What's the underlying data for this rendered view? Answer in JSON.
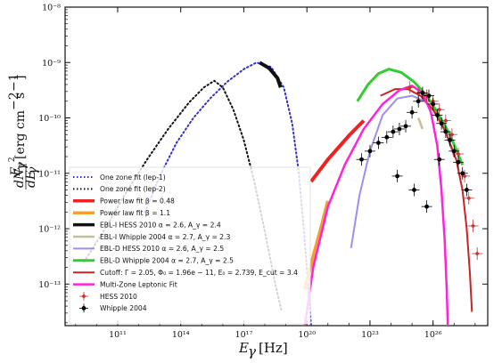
{
  "chart_data": {
    "type": "line",
    "xlabel": "E_γ [Hz]",
    "ylabel": "E_γ² dN_γ/dE_γ [erg cm⁻² s⁻¹]",
    "xscale": "log",
    "yscale": "log",
    "xlim_exp": [
      8.5,
      28.6
    ],
    "ylim_exp": [
      -13.75,
      -8
    ],
    "x_ticks": [
      {
        "exp": 11,
        "label": "10¹¹"
      },
      {
        "exp": 14,
        "label": "10¹⁴"
      },
      {
        "exp": 17,
        "label": "10¹⁷"
      },
      {
        "exp": 20,
        "label": "10²⁰"
      },
      {
        "exp": 23,
        "label": "10²³"
      },
      {
        "exp": 26,
        "label": "10²⁶"
      }
    ],
    "y_ticks": [
      {
        "exp": -8,
        "label": "10⁻⁸"
      },
      {
        "exp": -9,
        "label": "10⁻⁹"
      },
      {
        "exp": -10,
        "label": "10⁻¹⁰"
      },
      {
        "exp": -11,
        "label": "10⁻¹¹"
      },
      {
        "exp": -12,
        "label": "10⁻¹²"
      },
      {
        "exp": -13,
        "label": "10⁻¹³"
      }
    ],
    "grid": false,
    "legend_position": "lower-left",
    "series": [
      {
        "name": "One zone fit (lep-1)",
        "color": "#3333cc",
        "dash": "dotted",
        "width": 2,
        "points": [
          [
            12.3,
            -11.7
          ],
          [
            13.0,
            -11.05
          ],
          [
            13.8,
            -10.45
          ],
          [
            14.6,
            -10.0
          ],
          [
            15.4,
            -9.65
          ],
          [
            16.2,
            -9.35
          ],
          [
            17.0,
            -9.12
          ],
          [
            17.6,
            -9.0
          ],
          [
            18.3,
            -9.08
          ],
          [
            18.9,
            -9.45
          ],
          [
            19.3,
            -10.1
          ],
          [
            19.6,
            -10.95
          ],
          [
            19.85,
            -12.0
          ],
          [
            20.05,
            -13.0
          ],
          [
            20.2,
            -13.75
          ]
        ]
      },
      {
        "name": "One zone fit (lep-2)",
        "color": "#111111",
        "dash": "dotted",
        "width": 2,
        "points": [
          [
            9.4,
            -12.6
          ],
          [
            10.4,
            -12.0
          ],
          [
            11.4,
            -11.35
          ],
          [
            12.4,
            -10.75
          ],
          [
            13.4,
            -10.2
          ],
          [
            14.4,
            -9.72
          ],
          [
            15.1,
            -9.45
          ],
          [
            15.6,
            -9.33
          ],
          [
            16.0,
            -9.45
          ],
          [
            16.5,
            -9.85
          ],
          [
            17.0,
            -10.4
          ],
          [
            17.5,
            -11.15
          ],
          [
            18.0,
            -12.05
          ],
          [
            18.5,
            -13.0
          ],
          [
            18.8,
            -13.5
          ]
        ]
      },
      {
        "name": "Power law fit β = 0.48",
        "color": "#ee2222",
        "dash": "solid",
        "width": 4,
        "points": [
          [
            20.2,
            -11.15
          ],
          [
            21.0,
            -10.75
          ],
          [
            22.0,
            -10.32
          ],
          [
            22.7,
            -10.05
          ]
        ]
      },
      {
        "name": "Power law fit β = 1.1",
        "color": "#f0a030",
        "dash": "solid",
        "width": 4,
        "points": [
          [
            19.9,
            -13.1
          ],
          [
            20.3,
            -12.5
          ],
          [
            20.7,
            -11.95
          ],
          [
            21.0,
            -11.5
          ]
        ]
      },
      {
        "name": "EBL-I HESS 2010 α = 2.6, A_γ = 2.4",
        "color": "#111111",
        "dash": "solid",
        "width": 4,
        "points": [
          [
            17.75,
            -9.0
          ],
          [
            18.2,
            -9.1
          ],
          [
            18.6,
            -9.28
          ],
          [
            18.75,
            -9.45
          ]
        ]
      },
      {
        "name": "EBL-I Whipple 2004 α = 2.7, A_γ = 2.3",
        "color": "#c8c090",
        "dash": "solid",
        "width": 2.5,
        "points": [
          [
            25.3,
            -10.0
          ],
          [
            25.5,
            -10.2
          ]
        ]
      },
      {
        "name": "EBL-D HESS 2010 α = 2.6, A_γ = 2.5",
        "color": "#9d8ff0",
        "dash": "solid",
        "width": 2,
        "points": [
          [
            22.1,
            -12.35
          ],
          [
            22.5,
            -11.4
          ],
          [
            23.0,
            -10.6
          ],
          [
            23.6,
            -9.95
          ],
          [
            24.3,
            -9.65
          ],
          [
            25.0,
            -9.6
          ],
          [
            25.6,
            -9.7
          ],
          [
            26.1,
            -9.9
          ],
          [
            26.6,
            -10.25
          ],
          [
            27.0,
            -10.7
          ]
        ]
      },
      {
        "name": "EBL-D Whipple 2004 α = 2.7, A_γ = 2.5",
        "color": "#33cc33",
        "dash": "solid",
        "width": 3,
        "points": [
          [
            22.4,
            -9.7
          ],
          [
            22.9,
            -9.4
          ],
          [
            23.4,
            -9.2
          ],
          [
            23.9,
            -9.12
          ],
          [
            24.5,
            -9.18
          ],
          [
            25.1,
            -9.35
          ],
          [
            25.7,
            -9.6
          ],
          [
            26.2,
            -9.9
          ],
          [
            26.8,
            -10.3
          ],
          [
            27.4,
            -10.85
          ]
        ]
      },
      {
        "name": "Cutoff: Γ = 2.05, Φ₀ = 1.96e − 11, E₀ = 2.739, E_cut = 3.4",
        "color": "#cc2222",
        "dash": "solid",
        "width": 2,
        "points": [
          [
            23.5,
            -9.6
          ],
          [
            24.2,
            -9.48
          ],
          [
            24.8,
            -9.48
          ],
          [
            25.4,
            -9.6
          ],
          [
            26.0,
            -9.85
          ],
          [
            26.6,
            -10.25
          ],
          [
            27.1,
            -10.75
          ],
          [
            27.4,
            -11.3
          ],
          [
            27.6,
            -12.0
          ],
          [
            27.75,
            -12.8
          ],
          [
            27.85,
            -13.5
          ]
        ]
      },
      {
        "name": "Multi-Zone Leptonic Fit",
        "color": "#ff22dd",
        "dash": "solid",
        "width": 2.5,
        "points": [
          [
            19.9,
            -13.75
          ],
          [
            20.3,
            -12.7
          ],
          [
            21.0,
            -11.6
          ],
          [
            21.8,
            -10.85
          ],
          [
            22.7,
            -10.2
          ],
          [
            23.6,
            -9.75
          ],
          [
            24.4,
            -9.5
          ],
          [
            25.0,
            -9.42
          ],
          [
            25.5,
            -9.55
          ],
          [
            25.9,
            -9.9
          ],
          [
            26.2,
            -10.5
          ],
          [
            26.4,
            -11.3
          ],
          [
            26.55,
            -12.2
          ],
          [
            26.65,
            -13.1
          ],
          [
            26.7,
            -13.75
          ]
        ]
      }
    ],
    "data_series": [
      {
        "name": "HESS 2010",
        "color": "#cc3333",
        "marker": "diamond",
        "points": [
          [
            24.9,
            -9.45
          ],
          [
            25.3,
            -9.55
          ],
          [
            25.7,
            -9.6
          ],
          [
            26.0,
            -9.7
          ],
          [
            26.3,
            -9.85
          ],
          [
            26.6,
            -10.05
          ],
          [
            26.9,
            -10.3
          ],
          [
            27.2,
            -10.65
          ],
          [
            27.5,
            -11.05
          ],
          [
            27.7,
            -11.45
          ],
          [
            27.9,
            -11.95
          ],
          [
            28.1,
            -12.45
          ]
        ]
      },
      {
        "name": "Whipple 2004",
        "color": "#000000",
        "marker": "circle",
        "points": [
          [
            22.6,
            -10.75
          ],
          [
            23.0,
            -10.6
          ],
          [
            23.4,
            -10.45
          ],
          [
            23.8,
            -10.35
          ],
          [
            24.1,
            -10.25
          ],
          [
            24.4,
            -10.2
          ],
          [
            24.7,
            -10.15
          ],
          [
            25.0,
            -9.9
          ],
          [
            25.3,
            -9.7
          ],
          [
            25.5,
            -9.55
          ],
          [
            25.8,
            -9.6
          ],
          [
            26.0,
            -9.75
          ],
          [
            26.2,
            -9.95
          ],
          [
            26.4,
            -10.1
          ],
          [
            26.6,
            -10.25
          ],
          [
            26.8,
            -10.4
          ],
          [
            27.0,
            -10.6
          ],
          [
            27.2,
            -10.8
          ],
          [
            27.4,
            -11.0
          ],
          [
            27.6,
            -11.3
          ],
          [
            24.3,
            -11.05
          ],
          [
            25.1,
            -11.3
          ],
          [
            25.7,
            -11.6
          ],
          [
            26.3,
            -10.75
          ]
        ]
      }
    ]
  }
}
